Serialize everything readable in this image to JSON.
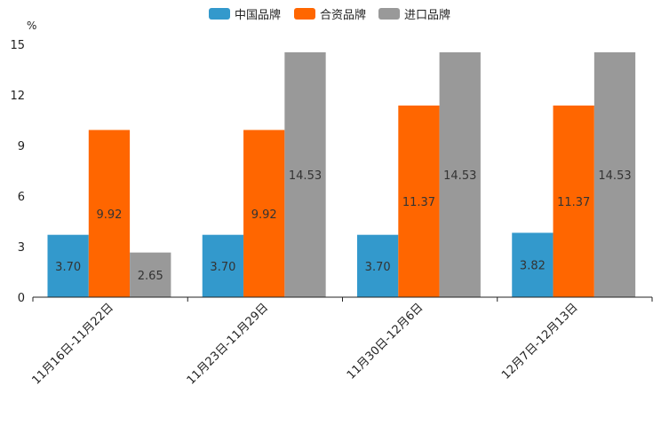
{
  "chart_data": {
    "type": "bar",
    "title": "",
    "xlabel": "",
    "ylabel": "%",
    "ylim": [
      0,
      15
    ],
    "yticks": [
      0,
      3,
      6,
      9,
      12,
      15
    ],
    "grid": false,
    "legend_position": "top-center",
    "categories": [
      "11月16日-11月22日",
      "11月23日-11月29日",
      "11月30日-12月6日",
      "12月7日-12月13日"
    ],
    "series": [
      {
        "name": "中国品牌",
        "color": "#3399cc",
        "values": [
          3.7,
          3.7,
          3.7,
          3.82
        ],
        "labels": [
          "3.70",
          "3.70",
          "3.70",
          "3.82"
        ]
      },
      {
        "name": "合资品牌",
        "color": "#ff6600",
        "values": [
          9.92,
          9.92,
          11.37,
          11.37
        ],
        "labels": [
          "9.92",
          "9.92",
          "11.37",
          "11.37"
        ]
      },
      {
        "name": "进口品牌",
        "color": "#999999",
        "values": [
          2.65,
          14.53,
          14.53,
          14.53
        ],
        "labels": [
          "2.65",
          "14.53",
          "14.53",
          "14.53"
        ]
      }
    ]
  }
}
